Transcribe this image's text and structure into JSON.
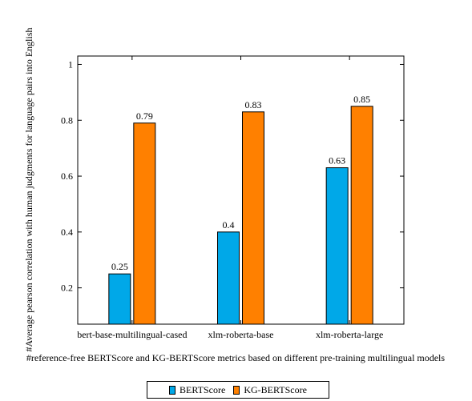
{
  "chart_data": {
    "type": "bar",
    "categories": [
      "bert-base-multilingual-cased",
      "xlm-roberta-base",
      "xlm-roberta-large"
    ],
    "series": [
      {
        "name": "BERTScore",
        "values": [
          0.25,
          0.4,
          0.63
        ],
        "color": "#00a8e8"
      },
      {
        "name": "KG-BERTScore",
        "values": [
          0.79,
          0.83,
          0.85
        ],
        "color": "#ff8000"
      }
    ],
    "data_labels": [
      [
        "0.25",
        "0.4",
        "0.63"
      ],
      [
        "0.79",
        "0.83",
        "0.85"
      ]
    ],
    "xlabel": "#reference-free BERTScore and KG-BERTScore metrics based on different pre-training multilingual models",
    "ylabel": "#Average pearson correlation with human judgments for language pairs into English",
    "yticks": [
      "0.2",
      "0.4",
      "0.6",
      "0.8",
      "1"
    ],
    "ylim": [
      0.07,
      1.03
    ],
    "grid": false,
    "legend_position": "bottom-center"
  }
}
